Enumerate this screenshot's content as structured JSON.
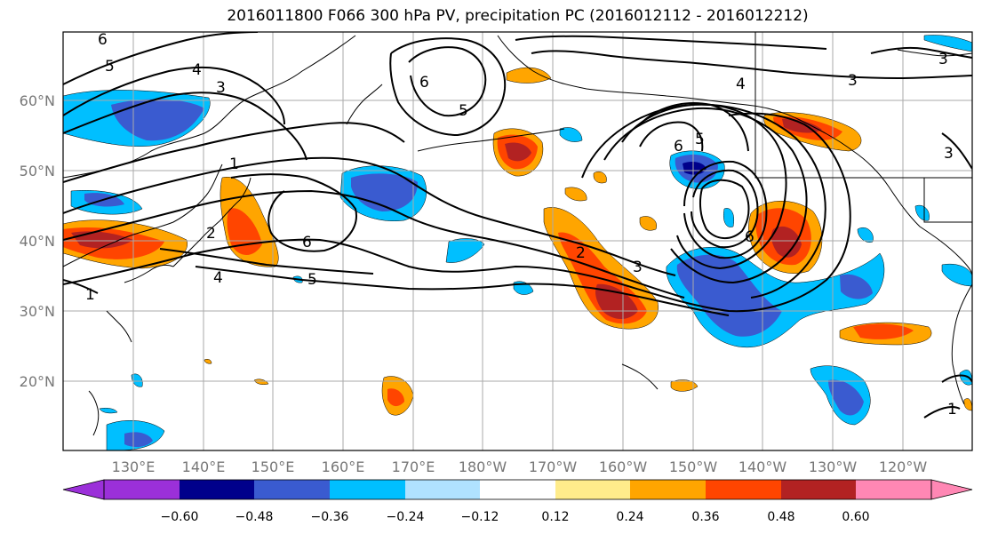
{
  "title": "2016011800 F066 300 hPa PV, precipitation PC (2016012112 - 2016012212)",
  "lat_labels": [
    "60°N",
    "50°N",
    "40°N",
    "30°N",
    "20°N"
  ],
  "lon_labels": [
    "130°E",
    "140°E",
    "150°E",
    "160°E",
    "170°E",
    "180°W",
    "170°W",
    "160°W",
    "150°W",
    "140°W",
    "130°W",
    "120°W"
  ],
  "colorbar": {
    "colors": [
      "#9b30d9",
      "#00008b",
      "#3a5bd0",
      "#00bfff",
      "#b0e2ff",
      "#ffffff",
      "#ffec8b",
      "#ffa500",
      "#ff4500",
      "#b22222",
      "#ff87b4"
    ],
    "extend_low_color": "#9b30d9",
    "extend_high_color": "#ff87b4",
    "tick_labels": [
      "−0.60",
      "−0.48",
      "−0.36",
      "−0.24",
      "−0.12",
      "0.12",
      "0.24",
      "0.36",
      "0.48",
      "0.60"
    ]
  },
  "contour_labels": [
    "6",
    "5",
    "4",
    "3",
    "1",
    "1",
    "2",
    "5",
    "4",
    "5",
    "6",
    "3",
    "2",
    "3",
    "4",
    "3",
    "6",
    "5",
    "6",
    "6",
    "3",
    "1"
  ],
  "colors": {
    "contour": "#000000",
    "grid": "#aaaaaa",
    "coast": "#000000"
  }
}
